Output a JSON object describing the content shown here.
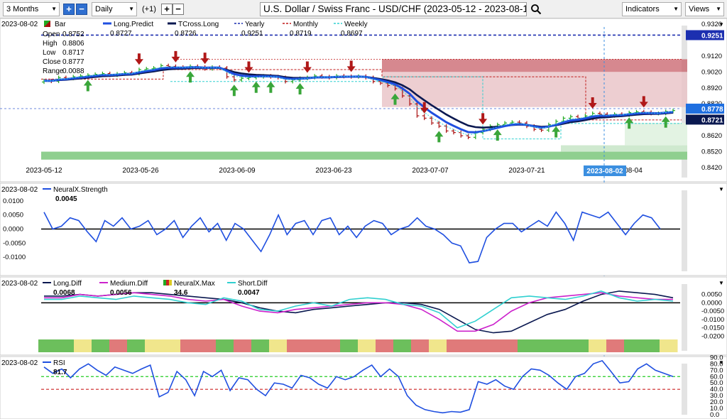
{
  "toolbar": {
    "period": "3 Months",
    "interval": "Daily",
    "offset": "(+1)",
    "title": "U.S. Dollar / Swiss Franc - USD/CHF (2023-05-12 - 2023-08-14)",
    "indicators": "Indicators",
    "views": "Views"
  },
  "colors": {
    "up_bar": "#22aa22",
    "down_bar": "#aa1111",
    "long_predict": "#1f4fe0",
    "tcross": "#0a1850",
    "yearly": "#1c2fb0",
    "monthly": "#c01818",
    "weekly": "#30d0d0",
    "neural": "#1f4fe0",
    "medium": "#cc22cc",
    "short": "#30d0d0",
    "rsi": "#1f4fe0",
    "price_tag": "#1f6fe0"
  },
  "chart_data": [
    {
      "panel": "price",
      "type": "candlestick",
      "header_date": "2023-08-02",
      "bar_label": "Bar",
      "ohlc_labels": {
        "open": "Open",
        "high": "High",
        "low": "Low",
        "close": "Close",
        "range": "Range"
      },
      "ohlc_values": {
        "open": "0.8752",
        "high": "0.8806",
        "low": "0.8717",
        "close": "0.8777",
        "range": "0.0088"
      },
      "legend": [
        {
          "name": "Long.Predict",
          "value": "0.8727"
        },
        {
          "name": "TCross.Long",
          "value": "0.8726"
        },
        {
          "name": "Yearly",
          "value": "0.9251"
        },
        {
          "name": "Monthly",
          "value": "0.8719"
        },
        {
          "name": "Weekly",
          "value": "0.8697"
        }
      ],
      "x_tick_labels": [
        "2023-05-12",
        "2023-05-26",
        "2023-06-09",
        "2023-06-23",
        "2023-07-07",
        "2023-07-21",
        "2023-08-02",
        "08-04"
      ],
      "cursor_label": "2023-08-02",
      "y_ticks": [
        "0.9320",
        "0.9120",
        "0.9020",
        "0.8920",
        "0.8820",
        "0.8620",
        "0.8520",
        "0.8420"
      ],
      "ylim": [
        0.842,
        0.932
      ],
      "price_tags": {
        "yearly": "0.9251",
        "last": "0.8778",
        "predict": "0.8721"
      },
      "close": [
        0.8965,
        0.8962,
        0.8985,
        0.898,
        0.899,
        0.8995,
        0.9,
        0.9005,
        0.901,
        0.9,
        0.9008,
        0.9015,
        0.901,
        0.9035,
        0.904,
        0.9045,
        0.906,
        0.9055,
        0.905,
        0.9045,
        0.9055,
        0.905,
        0.904,
        0.905,
        0.9045,
        0.899,
        0.897,
        0.898,
        0.8985,
        0.899,
        0.8995,
        0.899,
        0.8985,
        0.896,
        0.897,
        0.898,
        0.8985,
        0.8995,
        0.899,
        0.8985,
        0.8995,
        0.8992,
        0.899,
        0.8993,
        0.8985,
        0.896,
        0.895,
        0.8935,
        0.8915,
        0.887,
        0.882,
        0.8745,
        0.873,
        0.87,
        0.868,
        0.865,
        0.864,
        0.862,
        0.861,
        0.864,
        0.866,
        0.868,
        0.869,
        0.87,
        0.8705,
        0.87,
        0.868,
        0.866,
        0.8655,
        0.869,
        0.871,
        0.873,
        0.874,
        0.873,
        0.8745,
        0.876,
        0.8755,
        0.8745,
        0.8755,
        0.875,
        0.8765,
        0.877,
        0.8767,
        0.876,
        0.876,
        0.8772,
        0.8778
      ]
    },
    {
      "panel": "neuralx",
      "type": "line",
      "header_date": "2023-08-02",
      "series": [
        {
          "name": "NeuralX.Strength",
          "value": "0.0045",
          "values": [
            0.006,
            0.0,
            0.001,
            0.004,
            0.003,
            -0.001,
            -0.0045,
            0.003,
            0.001,
            0.004,
            0.0,
            0.001,
            0.003,
            -0.002,
            0.0,
            0.003,
            -0.003,
            0.001,
            0.004,
            -0.001,
            0.002,
            -0.004,
            0.002,
            0.0,
            -0.004,
            -0.008,
            -0.002,
            0.005,
            -0.002,
            0.002,
            0.003,
            -0.002,
            0.003,
            0.004,
            -0.002,
            0.001,
            -0.003,
            0.001,
            0.003,
            0.002,
            -0.002,
            0.0,
            0.001,
            0.004,
            0.001,
            0.0,
            -0.002,
            -0.005,
            -0.006,
            -0.012,
            -0.0115,
            -0.003,
            0.0,
            0.002,
            0.002,
            -0.001,
            0.001,
            0.003,
            0.001,
            0.006,
            0.002,
            -0.004,
            0.006,
            0.005,
            0.004,
            0.006,
            0.002,
            -0.002,
            0.002,
            0.005,
            0.004,
            0.0
          ]
        }
      ],
      "y_ticks": [
        "0.0100",
        "0.0050",
        "0.0000",
        "-0.0050",
        "-0.0100"
      ],
      "ylim": [
        -0.0135,
        0.013
      ]
    },
    {
      "panel": "diffs",
      "type": "line",
      "header_date": "2023-08-02",
      "series": [
        {
          "name": "Long.Diff",
          "value": "0.0068",
          "values": [
            0.004,
            0.004,
            0.005,
            0.004,
            0.005,
            0.006,
            0.006,
            0.005,
            0.004,
            0.003,
            0.002,
            0.0,
            -0.003,
            -0.005,
            -0.006,
            -0.004,
            -0.003,
            -0.002,
            -0.001,
            0.0,
            0.0,
            -0.001,
            -0.004,
            -0.01,
            -0.016,
            -0.018,
            -0.017,
            -0.012,
            -0.007,
            -0.004,
            0.001,
            0.005,
            0.007,
            0.006,
            0.005,
            0.003
          ]
        },
        {
          "name": "Medium.Diff",
          "value": "0.0056",
          "values": [
            0.003,
            0.003,
            0.005,
            0.004,
            0.005,
            0.006,
            0.005,
            0.004,
            0.002,
            0.001,
            0.002,
            -0.002,
            -0.005,
            -0.006,
            -0.004,
            -0.003,
            -0.002,
            -0.001,
            0.0,
            0.0,
            -0.001,
            -0.004,
            -0.01,
            -0.017,
            -0.017,
            -0.013,
            -0.005,
            0.0,
            0.003,
            0.004,
            0.005,
            0.006,
            0.004,
            0.003,
            0.002,
            0.002
          ]
        },
        {
          "name": "NeuralX.Max",
          "value": "34.6"
        },
        {
          "name": "Short.Diff",
          "value": "0.0047",
          "values": [
            0.002,
            0.002,
            0.004,
            0.003,
            0.002,
            0.004,
            0.003,
            0.002,
            0.0,
            -0.001,
            0.003,
            0.001,
            -0.004,
            -0.005,
            -0.002,
            0.0,
            -0.002,
            0.002,
            0.003,
            0.002,
            -0.001,
            -0.002,
            -0.006,
            -0.015,
            -0.011,
            -0.004,
            0.003,
            0.004,
            0.003,
            0.002,
            0.004,
            0.007,
            0.003,
            0.001,
            0.002,
            0.001
          ]
        }
      ],
      "neuralx_max_blocks": [
        "g",
        "g",
        "y",
        "g",
        "r",
        "g",
        "y",
        "y",
        "r",
        "r",
        "g",
        "r",
        "g",
        "y",
        "r",
        "r",
        "r",
        "g",
        "y",
        "r",
        "g",
        "r",
        "y",
        "r",
        "r",
        "r",
        "r",
        "g",
        "g",
        "g",
        "g",
        "y",
        "r",
        "g",
        "g",
        "y"
      ],
      "y_ticks": [
        "0.0050",
        "0.0000",
        "-0.0050",
        "-0.0100",
        "-0.0150",
        "-0.0200"
      ],
      "ylim": [
        -0.022,
        0.0095
      ]
    },
    {
      "panel": "rsi",
      "type": "line",
      "header_date": "2023-08-02",
      "series": [
        {
          "name": "RSI",
          "value": "81.7",
          "values": [
            75,
            65,
            72,
            58,
            72,
            80,
            70,
            62,
            75,
            70,
            65,
            72,
            78,
            28,
            35,
            68,
            55,
            30,
            68,
            60,
            70,
            38,
            58,
            55,
            40,
            30,
            50,
            48,
            42,
            62,
            58,
            48,
            42,
            60,
            55,
            60,
            70,
            78,
            60,
            72,
            60,
            30,
            15,
            8,
            5,
            3,
            5,
            4,
            8,
            52,
            48,
            55,
            45,
            40,
            60,
            72,
            70,
            62,
            50,
            40,
            60,
            65,
            80,
            85,
            68,
            50,
            52,
            72,
            80,
            70,
            65,
            60
          ]
        }
      ],
      "y_ticks": [
        "90.0",
        "80.0",
        "70.0",
        "60.0",
        "50.0",
        "40.0",
        "30.0",
        "20.0",
        "10.0",
        "0.0"
      ],
      "ylim": [
        0,
        96
      ],
      "reference_lines": [
        60,
        40
      ]
    }
  ]
}
